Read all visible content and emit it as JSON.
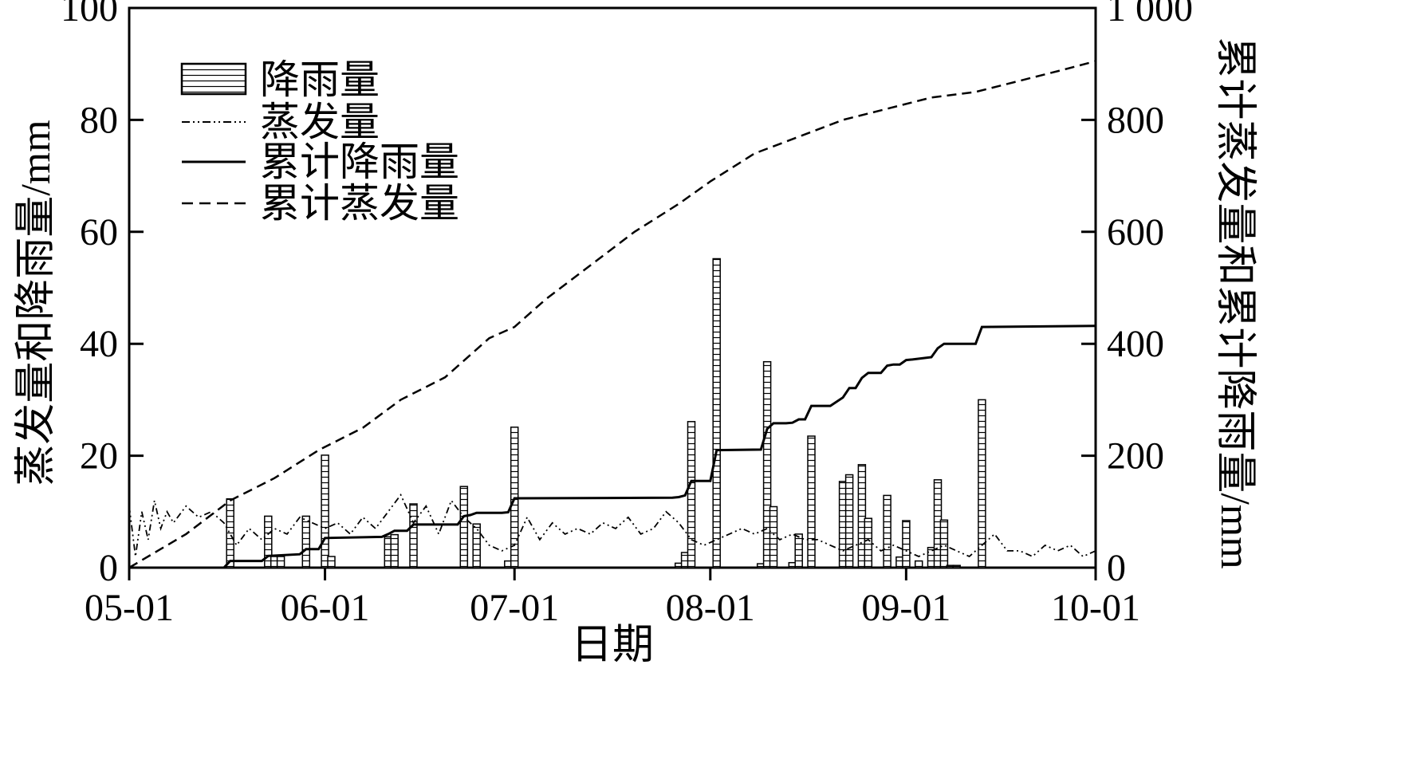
{
  "chart_data": {
    "type": "bar",
    "xlabel": "日期",
    "ylabel_left": "蒸发量和降雨量/mm",
    "ylabel_right": "累计蒸发量和累计降雨量/mm",
    "xlim": [
      "05-01",
      "10-01"
    ],
    "ylim_left": [
      0,
      100
    ],
    "ylim_right": [
      0,
      1000
    ],
    "x_ticks": [
      "05-01",
      "06-01",
      "07-01",
      "08-01",
      "09-01",
      "10-01"
    ],
    "y_ticks_left": [
      "0",
      "20",
      "40",
      "60",
      "80",
      "100"
    ],
    "y_ticks_right": [
      "0",
      "200",
      "400",
      "600",
      "800",
      "1 000"
    ],
    "legend": {
      "placement": "top-left",
      "entries": [
        "降雨量",
        "蒸发量",
        "累计降雨量",
        "累计蒸发量"
      ]
    },
    "series": [
      {
        "name": "降雨量",
        "kind": "bar",
        "axis": "left",
        "x": [
          "05-17",
          "05-23",
          "05-24",
          "05-25",
          "05-29",
          "06-01",
          "06-02",
          "06-11",
          "06-12",
          "06-15",
          "06-23",
          "06-25",
          "06-30",
          "07-01",
          "07-27",
          "07-28",
          "07-29",
          "08-02",
          "08-09",
          "08-10",
          "08-11",
          "08-14",
          "08-15",
          "08-17",
          "08-22",
          "08-23",
          "08-25",
          "08-26",
          "08-29",
          "08-31",
          "09-01",
          "09-03",
          "09-05",
          "09-06",
          "09-07",
          "09-08",
          "09-09",
          "09-13"
        ],
        "values": [
          12.3,
          9.2,
          2.0,
          2.0,
          9.2,
          20.1,
          2.0,
          5.5,
          5.9,
          11.4,
          14.5,
          7.8,
          1.2,
          25.1,
          0.8,
          2.7,
          26.1,
          55.2,
          0.7,
          36.8,
          10.9,
          0.9,
          6.0,
          23.5,
          15.4,
          16.6,
          18.4,
          8.8,
          12.9,
          1.9,
          8.4,
          1.2,
          3.6,
          15.7,
          8.5,
          0.4,
          0.4,
          30.0
        ]
      },
      {
        "name": "蒸发量",
        "kind": "line",
        "axis": "left",
        "style": "dash-dot",
        "x": [
          "05-01",
          "05-02",
          "05-03",
          "05-04",
          "05-05",
          "05-06",
          "05-07",
          "05-08",
          "05-10",
          "05-12",
          "05-14",
          "05-16",
          "05-18",
          "05-20",
          "05-22",
          "05-24",
          "05-26",
          "05-28",
          "05-30",
          "06-01",
          "06-03",
          "06-05",
          "06-07",
          "06-09",
          "06-11",
          "06-13",
          "06-15",
          "06-17",
          "06-19",
          "06-21",
          "06-23",
          "06-25",
          "06-27",
          "06-29",
          "07-01",
          "07-03",
          "07-05",
          "07-07",
          "07-09",
          "07-11",
          "07-13",
          "07-15",
          "07-17",
          "07-19",
          "07-21",
          "07-23",
          "07-25",
          "07-27",
          "07-29",
          "07-31",
          "08-02",
          "08-04",
          "08-06",
          "08-08",
          "08-10",
          "08-12",
          "08-14",
          "08-16",
          "08-18",
          "08-20",
          "08-22",
          "08-24",
          "08-26",
          "08-28",
          "08-30",
          "09-01",
          "09-03",
          "09-05",
          "09-07",
          "09-09",
          "09-11",
          "09-13",
          "09-15",
          "09-17",
          "09-19",
          "09-21",
          "09-23",
          "09-25",
          "09-27",
          "09-29",
          "10-01"
        ],
        "values": [
          11,
          2,
          10,
          5,
          12,
          7,
          10,
          8,
          11,
          9,
          10,
          8,
          4,
          7,
          5,
          7,
          6,
          9,
          8,
          7,
          8,
          6,
          9,
          7,
          10,
          13,
          8,
          11,
          6,
          12,
          9,
          7,
          4,
          3,
          4,
          9,
          5,
          8,
          6,
          7,
          6,
          8,
          7,
          9,
          6,
          7,
          10,
          8,
          5,
          4,
          5,
          6,
          7,
          6,
          7,
          5,
          6,
          5,
          5,
          4,
          3,
          4,
          5,
          3,
          4,
          3,
          2,
          3,
          4,
          3,
          2,
          4,
          6,
          3,
          3,
          2,
          4,
          3,
          4,
          2,
          3
        ]
      },
      {
        "name": "累计降雨量",
        "kind": "line",
        "axis": "right",
        "style": "solid",
        "x": [
          "05-01",
          "05-16",
          "05-17",
          "05-22",
          "05-23",
          "05-28",
          "05-29",
          "05-31",
          "06-01",
          "06-10",
          "06-11",
          "06-12",
          "06-14",
          "06-15",
          "06-22",
          "06-23",
          "06-24",
          "06-25",
          "06-29",
          "06-30",
          "07-01",
          "07-26",
          "07-27",
          "07-28",
          "07-29",
          "08-01",
          "08-02",
          "08-09",
          "08-10",
          "08-11",
          "08-13",
          "08-14",
          "08-15",
          "08-16",
          "08-17",
          "08-20",
          "08-22",
          "08-23",
          "08-24",
          "08-25",
          "08-26",
          "08-28",
          "08-29",
          "08-30",
          "08-31",
          "09-01",
          "09-02",
          "09-05",
          "09-06",
          "09-07",
          "09-08",
          "09-12",
          "09-13",
          "10-01"
        ],
        "values": [
          0,
          0,
          12,
          12,
          21,
          24,
          33,
          33,
          53,
          55,
          60,
          66,
          66,
          77,
          77,
          92,
          94,
          98,
          98,
          99,
          124,
          125,
          126,
          129,
          155,
          155,
          210,
          211,
          248,
          258,
          258,
          259,
          265,
          265,
          289,
          289,
          304,
          321,
          321,
          339,
          348,
          348,
          361,
          363,
          363,
          371,
          372,
          376,
          392,
          400,
          400,
          400,
          430,
          432
        ]
      },
      {
        "name": "累计蒸发量",
        "kind": "line",
        "axis": "right",
        "style": "dashed",
        "x": [
          "05-01",
          "05-10",
          "05-17",
          "05-24",
          "05-31",
          "06-07",
          "06-13",
          "06-20",
          "06-27",
          "07-01",
          "07-06",
          "07-13",
          "07-20",
          "07-27",
          "08-01",
          "08-08",
          "08-15",
          "08-22",
          "08-29",
          "09-05",
          "09-12",
          "09-19",
          "09-26",
          "10-01"
        ],
        "values": [
          0,
          60,
          120,
          160,
          210,
          250,
          300,
          340,
          410,
          430,
          480,
          540,
          600,
          650,
          690,
          740,
          770,
          800,
          820,
          840,
          850,
          870,
          890,
          905
        ]
      }
    ]
  }
}
